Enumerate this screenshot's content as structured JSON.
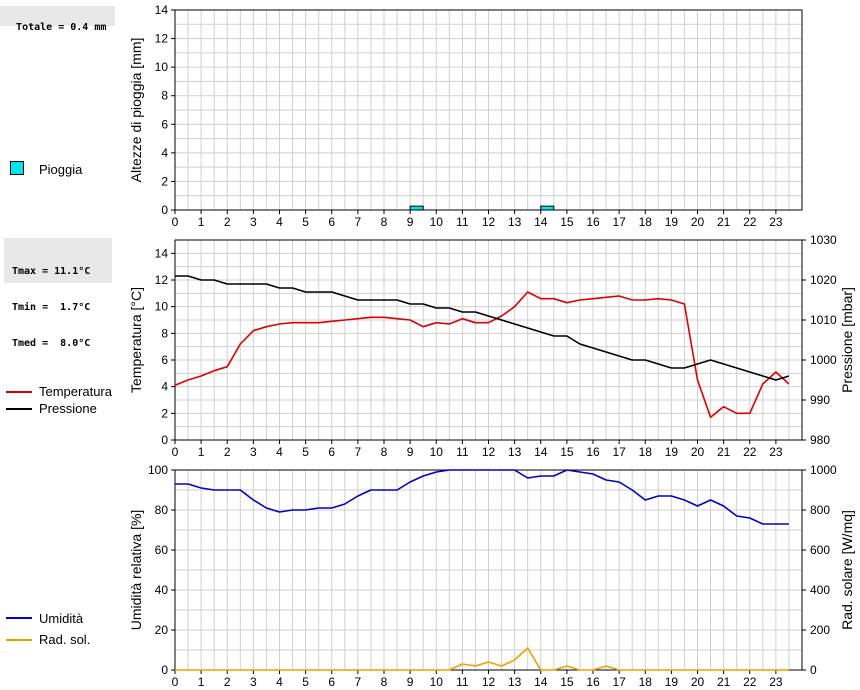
{
  "stats": {
    "total": "Totale = 0.4 mm",
    "tmax": "Tmax = 11.1°C",
    "tmin": "Tmin =  1.7°C",
    "tmed": "Tmed =  8.0°C"
  },
  "legend": {
    "pioggia": "Pioggia",
    "temperatura": "Temperatura",
    "pressione": "Pressione",
    "umidita": "Umidità",
    "radsol": "Rad. sol."
  },
  "colors": {
    "rain": "#00e5ee",
    "temperature": "#dd0000",
    "pressure": "#000000",
    "humidity": "#0000cc",
    "radiation": "#f0a000",
    "grid": "#d0d0d0"
  },
  "chart_data": [
    {
      "type": "bar",
      "ylabel": "Altezze di pioggia [mm]",
      "ylim": [
        0,
        14
      ],
      "yticks": [
        0,
        2,
        4,
        6,
        8,
        10,
        12,
        14
      ],
      "xticks": [
        "0",
        "1",
        "2",
        "3",
        "4",
        "5",
        "6",
        "7",
        "8",
        "9",
        "10",
        "11",
        "12",
        "13",
        "14",
        "15",
        "16",
        "17",
        "18",
        "19",
        "20",
        "21",
        "22",
        "23"
      ],
      "grid": true,
      "series": [
        {
          "name": "Pioggia",
          "x": [
            9.25,
            14.25
          ],
          "values": [
            0.2,
            0.2
          ]
        }
      ]
    },
    {
      "type": "line",
      "ylabel": "Temperatura [°C]",
      "ylabel_right": "Pressione [mbar]",
      "ylim": [
        0,
        15
      ],
      "yticks": [
        0,
        2,
        4,
        6,
        8,
        10,
        12,
        14
      ],
      "ylim_right": [
        980,
        1030
      ],
      "yticks_right": [
        980,
        990,
        1000,
        1010,
        1020,
        1030
      ],
      "xticks": [
        "0",
        "1",
        "2",
        "3",
        "4",
        "5",
        "6",
        "7",
        "8",
        "9",
        "10",
        "11",
        "12",
        "13",
        "14",
        "15",
        "16",
        "17",
        "18",
        "19",
        "20",
        "21",
        "22",
        "23"
      ],
      "grid": true,
      "series": [
        {
          "name": "Temperatura",
          "axis": "left",
          "x": [
            0,
            0.5,
            1,
            1.5,
            2,
            2.5,
            3,
            3.5,
            4,
            4.5,
            5,
            5.5,
            6,
            6.5,
            7,
            7.5,
            8,
            8.5,
            9,
            9.5,
            10,
            10.5,
            11,
            11.5,
            12,
            12.5,
            13,
            13.5,
            14,
            14.5,
            15,
            15.5,
            16,
            16.5,
            17,
            17.5,
            18,
            18.5,
            19,
            19.5,
            20,
            20.5,
            21,
            21.5,
            22,
            22.5,
            23,
            23.5
          ],
          "values": [
            4.1,
            4.5,
            4.8,
            5.2,
            5.5,
            7.2,
            8.2,
            8.5,
            8.7,
            8.8,
            8.8,
            8.8,
            8.9,
            9.0,
            9.1,
            9.2,
            9.2,
            9.1,
            9.0,
            8.5,
            8.8,
            8.7,
            9.1,
            8.8,
            8.8,
            9.3,
            10.0,
            11.1,
            10.6,
            10.6,
            10.3,
            10.5,
            10.6,
            10.7,
            10.8,
            10.5,
            10.5,
            10.6,
            10.5,
            10.2,
            4.5,
            1.7,
            2.5,
            2.0,
            2.0,
            4.2,
            5.1,
            4.2
          ]
        },
        {
          "name": "Pressione",
          "axis": "right",
          "x": [
            0,
            0.5,
            1,
            1.5,
            2,
            2.5,
            3,
            3.5,
            4,
            4.5,
            5,
            5.5,
            6,
            6.5,
            7,
            7.5,
            8,
            8.5,
            9,
            9.5,
            10,
            10.5,
            11,
            11.5,
            12,
            12.5,
            13,
            13.5,
            14,
            14.5,
            15,
            15.5,
            16,
            16.5,
            17,
            17.5,
            18,
            18.5,
            19,
            19.5,
            20,
            20.5,
            21,
            21.5,
            22,
            22.5,
            23,
            23.5
          ],
          "values": [
            1021,
            1021,
            1020,
            1020,
            1019,
            1019,
            1019,
            1019,
            1018,
            1018,
            1017,
            1017,
            1017,
            1016,
            1015,
            1015,
            1015,
            1015,
            1014,
            1014,
            1013,
            1013,
            1012,
            1012,
            1011,
            1010,
            1009,
            1008,
            1007,
            1006,
            1006,
            1004,
            1003,
            1002,
            1001,
            1000,
            1000,
            999,
            998,
            998,
            999,
            1000,
            999,
            998,
            997,
            996,
            995,
            996
          ]
        }
      ]
    },
    {
      "type": "line",
      "ylabel": "Umidità relativa [%]",
      "ylabel_right": "Rad. solare [W/mq]",
      "ylim": [
        0,
        100
      ],
      "yticks": [
        0,
        20,
        40,
        60,
        80,
        100
      ],
      "ylim_right": [
        0,
        1000
      ],
      "yticks_right": [
        0,
        200,
        400,
        600,
        800,
        1000
      ],
      "xticks": [
        "0",
        "1",
        "2",
        "3",
        "4",
        "5",
        "6",
        "7",
        "8",
        "9",
        "10",
        "11",
        "12",
        "13",
        "14",
        "15",
        "16",
        "17",
        "18",
        "19",
        "20",
        "21",
        "22",
        "23"
      ],
      "grid": true,
      "series": [
        {
          "name": "Umidità",
          "axis": "left",
          "x": [
            0,
            0.5,
            1,
            1.5,
            2,
            2.5,
            3,
            3.5,
            4,
            4.5,
            5,
            5.5,
            6,
            6.5,
            7,
            7.5,
            8,
            8.5,
            9,
            9.5,
            10,
            10.5,
            11,
            11.5,
            12,
            12.5,
            13,
            13.5,
            14,
            14.5,
            15,
            15.5,
            16,
            16.5,
            17,
            17.5,
            18,
            18.5,
            19,
            19.5,
            20,
            20.5,
            21,
            21.5,
            22,
            22.5,
            23,
            23.5
          ],
          "values": [
            93,
            93,
            91,
            90,
            90,
            90,
            85,
            81,
            79,
            80,
            80,
            81,
            81,
            83,
            87,
            90,
            90,
            90,
            94,
            97,
            99,
            100,
            100,
            100,
            100,
            100,
            100,
            96,
            97,
            97,
            100,
            99,
            98,
            95,
            94,
            90,
            85,
            87,
            87,
            85,
            82,
            85,
            82,
            77,
            76,
            73,
            73,
            73
          ]
        },
        {
          "name": "Rad. sol.",
          "axis": "right",
          "x": [
            0,
            0.5,
            1,
            1.5,
            2,
            2.5,
            3,
            3.5,
            4,
            4.5,
            5,
            5.5,
            6,
            6.5,
            7,
            7.5,
            8,
            8.5,
            9,
            9.5,
            10,
            10.5,
            11,
            11.5,
            12,
            12.5,
            13,
            13.5,
            14,
            14.5,
            15,
            15.5,
            16,
            16.5,
            17,
            17.5,
            18,
            18.5,
            19,
            19.5,
            20,
            20.5,
            21,
            21.5,
            22,
            22.5,
            23,
            23.5
          ],
          "values": [
            0,
            0,
            0,
            0,
            0,
            0,
            0,
            0,
            0,
            0,
            0,
            0,
            0,
            0,
            0,
            0,
            0,
            0,
            0,
            0,
            0,
            0,
            30,
            20,
            40,
            20,
            50,
            110,
            0,
            0,
            20,
            0,
            0,
            20,
            0,
            0,
            0,
            0,
            0,
            0,
            0,
            0,
            0,
            0,
            0,
            0,
            0,
            0
          ]
        }
      ]
    }
  ]
}
